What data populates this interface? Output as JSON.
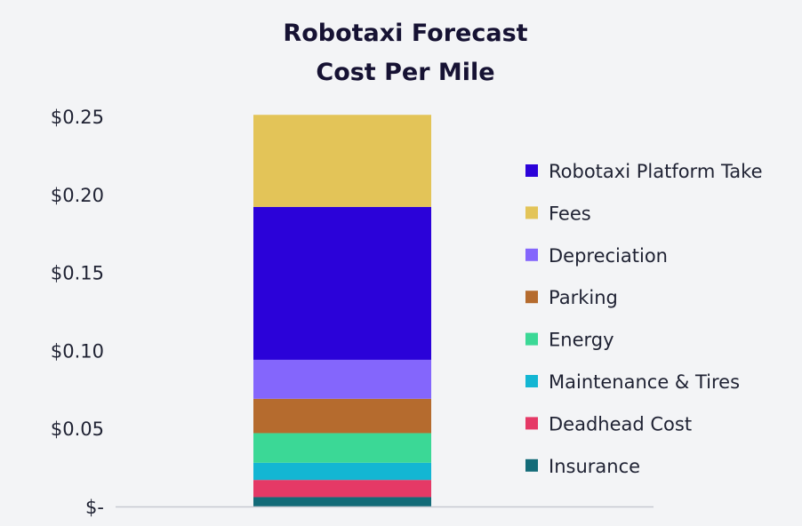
{
  "chart_data": {
    "type": "bar",
    "stacked": true,
    "title": [
      "Robotaxi Forecast",
      "Cost Per Mile"
    ],
    "xlabel": "",
    "ylabel": "",
    "ylim": [
      0,
      0.25
    ],
    "y_ticks": [
      {
        "value": 0,
        "label": "$-"
      },
      {
        "value": 0.05,
        "label": "$0.05"
      },
      {
        "value": 0.1,
        "label": "$0.10"
      },
      {
        "value": 0.15,
        "label": "$0.15"
      },
      {
        "value": 0.2,
        "label": "$0.20"
      },
      {
        "value": 0.25,
        "label": "$0.25"
      }
    ],
    "grid": false,
    "legend_position": "right",
    "categories": [
      ""
    ],
    "series": [
      {
        "name": "Insurance",
        "values": [
          0.006
        ],
        "color": "#136b78"
      },
      {
        "name": "Deadhead Cost",
        "values": [
          0.011
        ],
        "color": "#e53966"
      },
      {
        "name": "Maintenance & Tires",
        "values": [
          0.011
        ],
        "color": "#13b6d3"
      },
      {
        "name": "Energy",
        "values": [
          0.019
        ],
        "color": "#3bd896"
      },
      {
        "name": "Parking",
        "values": [
          0.022
        ],
        "color": "#b56b2e"
      },
      {
        "name": "Depreciation",
        "values": [
          0.025
        ],
        "color": "#8466fc"
      },
      {
        "name": "Robotaxi Platform Take",
        "values": [
          0.098
        ],
        "color": "#2b02d9"
      },
      {
        "name": "Fees",
        "values": [
          0.059
        ],
        "color": "#e3c458"
      }
    ],
    "legend_order": [
      "Robotaxi Platform Take",
      "Fees",
      "Depreciation",
      "Parking",
      "Energy",
      "Maintenance & Tires",
      "Deadhead Cost",
      "Insurance"
    ]
  }
}
